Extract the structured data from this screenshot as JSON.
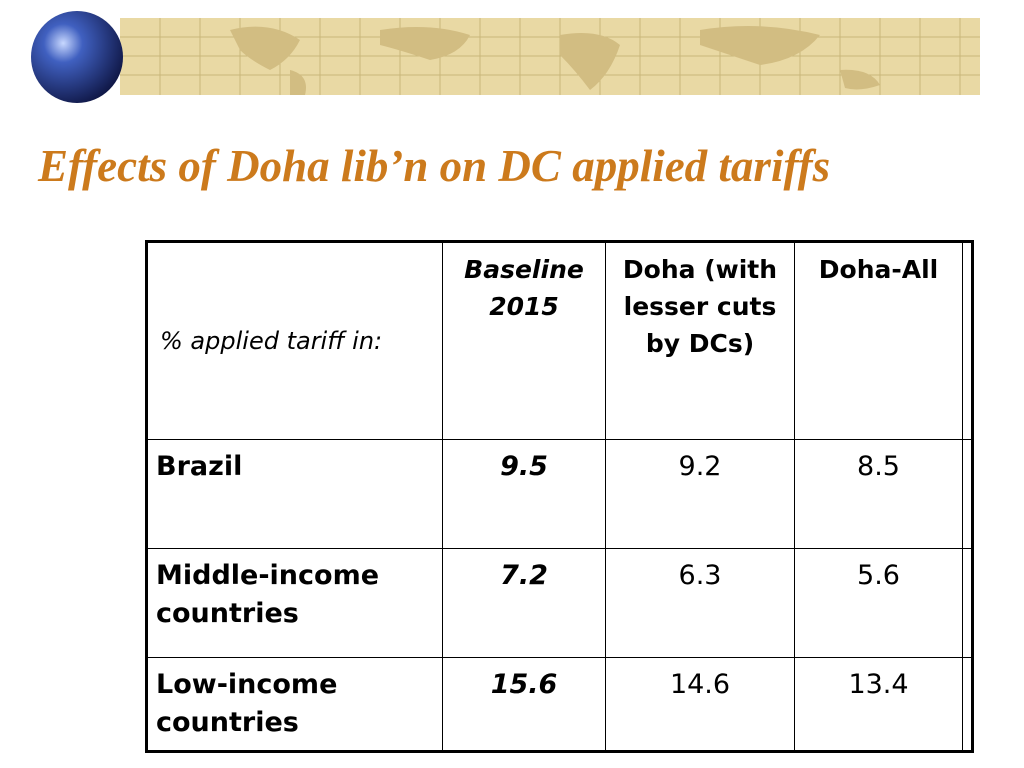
{
  "title": "Effects of Doha lib’n on DC applied tariffs",
  "table": {
    "header": [
      "%  applied tariff in:",
      "Baseline 2015",
      "Doha (with lesser cuts by DCs)",
      "Doha-All"
    ],
    "rows": [
      [
        "Brazil",
        "9.5",
        "9.2",
        "8.5"
      ],
      [
        "Middle-income countries",
        "7.2",
        "6.3",
        "5.6"
      ],
      [
        "Low-income countries",
        "15.6",
        "14.6",
        "13.4"
      ]
    ]
  }
}
